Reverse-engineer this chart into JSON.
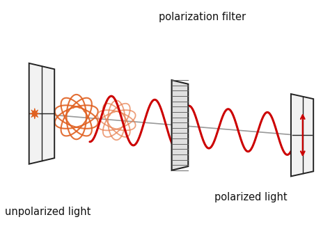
{
  "background_color": "#ffffff",
  "text_color": "#111111",
  "red_color": "#cc0000",
  "red_dark": "#bb0000",
  "orange_color": "#e06020",
  "orange_light": "#e88050",
  "gray_color": "#888888",
  "dark_color": "#222222",
  "label_unpolarized": "unpolarized light",
  "label_polarized": "polarized light",
  "label_filter": "polarization filter",
  "figsize": [
    4.74,
    3.55
  ],
  "dpi": 100
}
